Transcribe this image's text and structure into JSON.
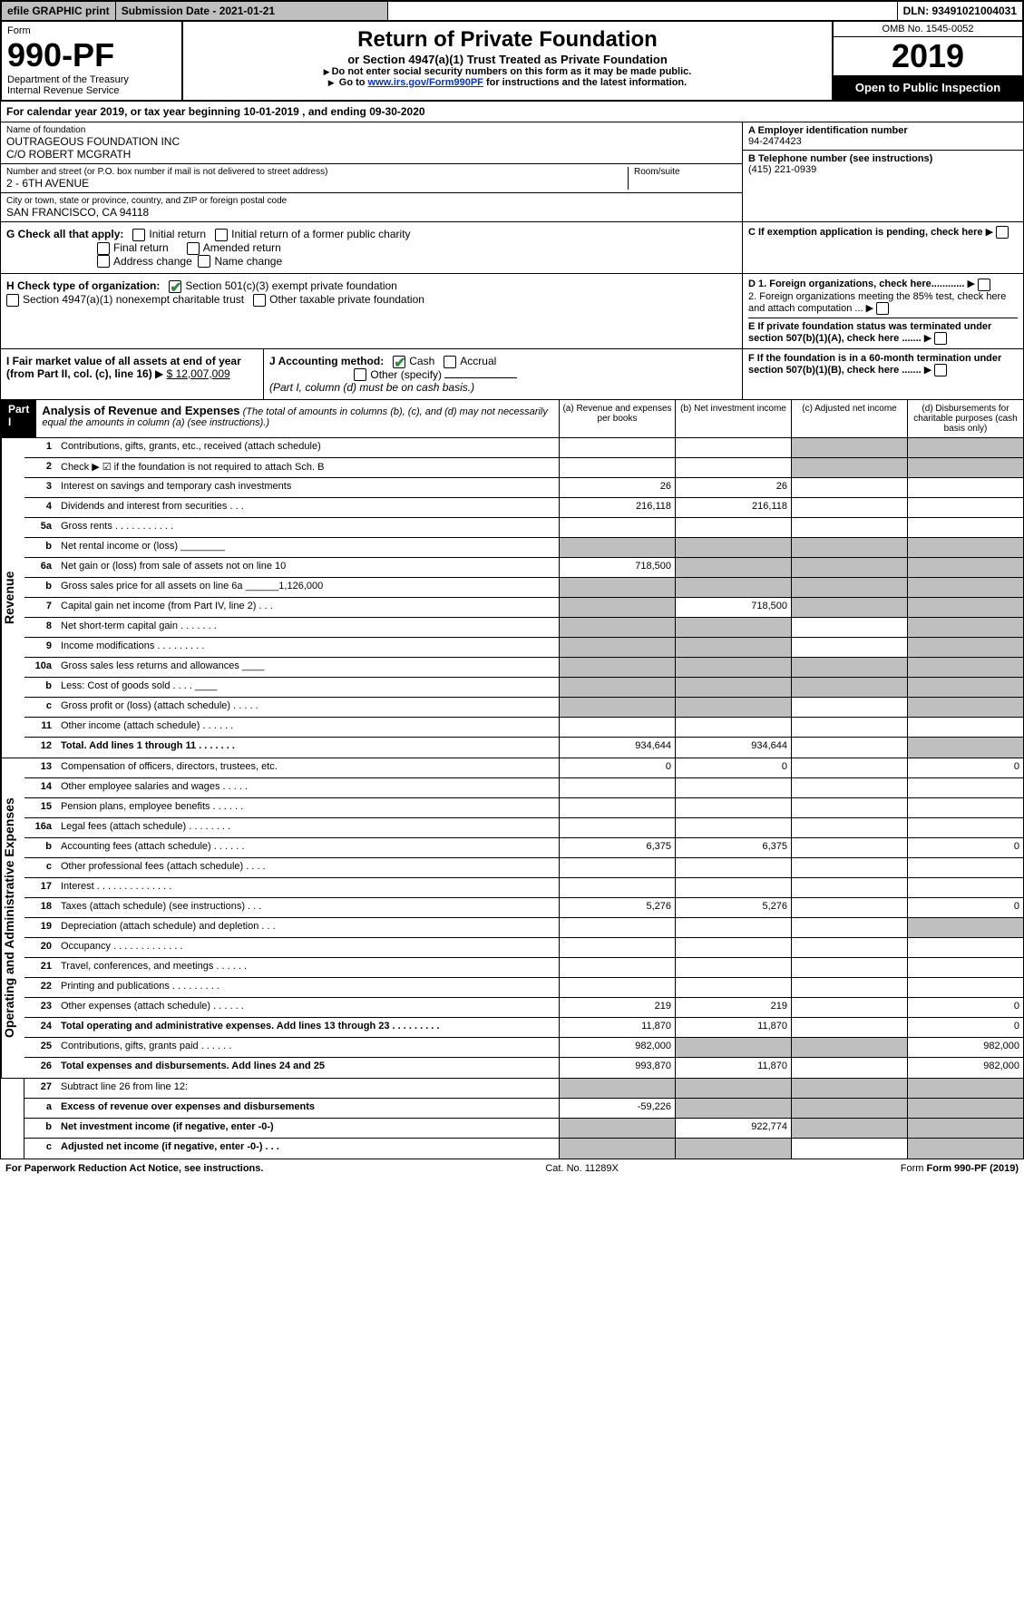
{
  "topbar": {
    "efile": "efile GRAPHIC print",
    "submission_label": "Submission Date - 2021-01-21",
    "dln_label": "DLN: 93491021004031"
  },
  "header": {
    "form_word": "Form",
    "form_no": "990-PF",
    "dept": "Department of the Treasury",
    "irs": "Internal Revenue Service",
    "title": "Return of Private Foundation",
    "subtitle": "or Section 4947(a)(1) Trust Treated as Private Foundation",
    "instr1": "Do not enter social security numbers on this form as it may be made public.",
    "instr2_pre": "Go to ",
    "instr2_link": "www.irs.gov/Form990PF",
    "instr2_post": " for instructions and the latest information.",
    "omb": "OMB No. 1545-0052",
    "year": "2019",
    "open": "Open to Public Inspection"
  },
  "cal": {
    "text_pre": "For calendar year 2019, or tax year beginning ",
    "begin": "10-01-2019",
    "text_mid": " , and ending ",
    "end": "09-30-2020"
  },
  "id": {
    "name_label": "Name of foundation",
    "name1": "OUTRAGEOUS FOUNDATION INC",
    "name2": "C/O ROBERT MCGRATH",
    "addr_label": "Number and street (or P.O. box number if mail is not delivered to street address)",
    "room_label": "Room/suite",
    "addr": "2 - 6TH AVENUE",
    "city_label": "City or town, state or province, country, and ZIP or foreign postal code",
    "city": "SAN FRANCISCO, CA  94118",
    "A_label": "A Employer identification number",
    "A_val": "94-2474423",
    "B_label": "B Telephone number (see instructions)",
    "B_val": "(415) 221-0939",
    "C_label": "C If exemption application is pending, check here",
    "D1": "D 1. Foreign organizations, check here............",
    "D2": "2. Foreign organizations meeting the 85% test, check here and attach computation ...",
    "E": "E  If private foundation status was terminated under section 507(b)(1)(A), check here .......",
    "F": "F  If the foundation is in a 60-month termination under section 507(b)(1)(B), check here ......."
  },
  "G": {
    "label": "G Check all that apply:",
    "initial": "Initial return",
    "initial_former": "Initial return of a former public charity",
    "final": "Final return",
    "amended": "Amended return",
    "address": "Address change",
    "namechg": "Name change"
  },
  "H": {
    "label": "H Check type of organization:",
    "s501": "Section 501(c)(3) exempt private foundation",
    "s4947": "Section 4947(a)(1) nonexempt charitable trust",
    "other": "Other taxable private foundation"
  },
  "I": {
    "label": "I Fair market value of all assets at end of year (from Part II, col. (c), line 16) ",
    "val": "$  12,007,009"
  },
  "J": {
    "label": "J Accounting method:",
    "cash": "Cash",
    "accrual": "Accrual",
    "other": "Other (specify)",
    "note": "(Part I, column (d) must be on cash basis.)"
  },
  "part1": {
    "label": "Part I",
    "title": "Analysis of Revenue and Expenses",
    "note": " (The total of amounts in columns (b), (c), and (d) may not necessarily equal the amounts in column (a) (see instructions).)",
    "col_a": "(a)   Revenue and expenses per books",
    "col_b": "(b)   Net investment income",
    "col_c": "(c)   Adjusted net income",
    "col_d": "(d)   Disbursements for charitable purposes (cash basis only)"
  },
  "side": {
    "revenue": "Revenue",
    "expenses": "Operating and Administrative Expenses"
  },
  "rows": [
    {
      "n": "1",
      "d": "Contributions, gifts, grants, etc., received (attach schedule)",
      "a": "",
      "b": "",
      "c_s": true,
      "d_s": true
    },
    {
      "n": "2",
      "d": "Check ▶ ☑ if the foundation is not required to attach Sch. B",
      "a": "",
      "b": "",
      "c_s": true,
      "d_s": true,
      "merge": true
    },
    {
      "n": "3",
      "d": "Interest on savings and temporary cash investments",
      "a": "26",
      "b": "26"
    },
    {
      "n": "4",
      "d": "Dividends and interest from securities   .   .   .",
      "a": "216,118",
      "b": "216,118"
    },
    {
      "n": "5a",
      "d": "Gross rents   .   .   .   .   .   .   .   .   .   .   .",
      "a": "",
      "b": ""
    },
    {
      "n": "b",
      "d": "Net rental income or (loss)  ________",
      "a_s": true,
      "b_s": true,
      "c_s": true,
      "d_s": true
    },
    {
      "n": "6a",
      "d": "Net gain or (loss) from sale of assets not on line 10",
      "a": "718,500",
      "b_s": true,
      "c_s": true,
      "d_s": true
    },
    {
      "n": "b",
      "d": "Gross sales price for all assets on line 6a ______1,126,000",
      "a_s": true,
      "b_s": true,
      "c_s": true,
      "d_s": true
    },
    {
      "n": "7",
      "d": "Capital gain net income (from Part IV, line 2)   .   .   .",
      "a_s": true,
      "b": "718,500",
      "c_s": true,
      "d_s": true
    },
    {
      "n": "8",
      "d": "Net short-term capital gain   .   .   .   .   .   .   .",
      "a_s": true,
      "b_s": true,
      "d_s": true
    },
    {
      "n": "9",
      "d": "Income modifications   .   .   .   .   .   .   .   .   .",
      "a_s": true,
      "b_s": true,
      "d_s": true
    },
    {
      "n": "10a",
      "d": "Gross sales less returns and allowances  ____",
      "a_s": true,
      "b_s": true,
      "c_s": true,
      "d_s": true
    },
    {
      "n": "b",
      "d": "Less: Cost of goods sold   .   .   .   .  ____",
      "a_s": true,
      "b_s": true,
      "c_s": true,
      "d_s": true
    },
    {
      "n": "c",
      "d": "Gross profit or (loss) (attach schedule)   .   .   .   .   .",
      "a_s": true,
      "b_s": true,
      "d_s": true
    },
    {
      "n": "11",
      "d": "Other income (attach schedule)   .   .   .   .   .   .",
      "a": "",
      "b": ""
    },
    {
      "n": "12",
      "d": "Total. Add lines 1 through 11   .   .   .   .   .   .   .",
      "a": "934,644",
      "b": "934,644",
      "bold": true,
      "d_s": true
    }
  ],
  "exp_rows": [
    {
      "n": "13",
      "d": "Compensation of officers, directors, trustees, etc.",
      "a": "0",
      "b": "0",
      "dd": "0"
    },
    {
      "n": "14",
      "d": "Other employee salaries and wages   .   .   .   .   ."
    },
    {
      "n": "15",
      "d": "Pension plans, employee benefits   .   .   .   .   .   ."
    },
    {
      "n": "16a",
      "d": "Legal fees (attach schedule)   .   .   .   .   .   .   .   ."
    },
    {
      "n": "b",
      "d": "Accounting fees (attach schedule)   .   .   .   .   .   .",
      "a": "6,375",
      "b": "6,375",
      "dd": "0"
    },
    {
      "n": "c",
      "d": "Other professional fees (attach schedule)   .   .   .   ."
    },
    {
      "n": "17",
      "d": "Interest   .   .   .   .   .   .   .   .   .   .   .   .   .   ."
    },
    {
      "n": "18",
      "d": "Taxes (attach schedule) (see instructions)   .   .   .",
      "a": "5,276",
      "b": "5,276",
      "dd": "0"
    },
    {
      "n": "19",
      "d": "Depreciation (attach schedule) and depletion   .   .   .",
      "d_s": true
    },
    {
      "n": "20",
      "d": "Occupancy   .   .   .   .   .   .   .   .   .   .   .   .   ."
    },
    {
      "n": "21",
      "d": "Travel, conferences, and meetings   .   .   .   .   .   ."
    },
    {
      "n": "22",
      "d": "Printing and publications   .   .   .   .   .   .   .   .   ."
    },
    {
      "n": "23",
      "d": "Other expenses (attach schedule)   .   .   .   .   .   .",
      "a": "219",
      "b": "219",
      "dd": "0"
    },
    {
      "n": "24",
      "d": "Total operating and administrative expenses. Add lines 13 through 23   .   .   .   .   .   .   .   .   .",
      "a": "11,870",
      "b": "11,870",
      "dd": "0",
      "bold": true
    },
    {
      "n": "25",
      "d": "Contributions, gifts, grants paid   .   .   .   .   .   .",
      "a": "982,000",
      "b_s": true,
      "c_s": true,
      "dd": "982,000"
    },
    {
      "n": "26",
      "d": "Total expenses and disbursements. Add lines 24 and 25",
      "a": "993,870",
      "b": "11,870",
      "dd": "982,000",
      "bold": true
    }
  ],
  "rows27": [
    {
      "n": "27",
      "d": "Subtract line 26 from line 12:",
      "a_s": true,
      "b_s": true,
      "c_s": true,
      "d_s": true
    },
    {
      "n": "a",
      "d": "Excess of revenue over expenses and disbursements",
      "a": "-59,226",
      "b_s": true,
      "c_s": true,
      "d_s": true,
      "bold": true
    },
    {
      "n": "b",
      "d": "Net investment income (if negative, enter -0-)",
      "a_s": true,
      "b": "922,774",
      "c_s": true,
      "d_s": true,
      "bold": true
    },
    {
      "n": "c",
      "d": "Adjusted net income (if negative, enter -0-)   .   .   .",
      "a_s": true,
      "b_s": true,
      "d_s": true,
      "bold": true
    }
  ],
  "footer": {
    "left": "For Paperwork Reduction Act Notice, see instructions.",
    "mid": "Cat. No. 11289X",
    "right": "Form 990-PF (2019)"
  },
  "colors": {
    "shade": "#bfbfbf",
    "link": "#0033cc",
    "check": "#2e8b3d"
  },
  "col_widths": {
    "a": 128,
    "b": 128,
    "c": 128,
    "d": 128
  }
}
